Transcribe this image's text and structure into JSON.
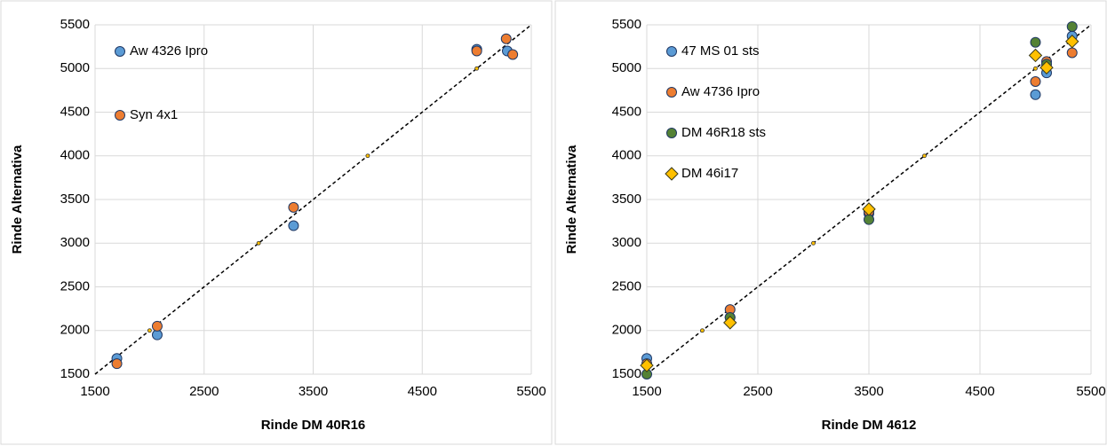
{
  "chart_data": [
    {
      "type": "scatter",
      "x_label": "Rinde DM 40R16",
      "y_label": "Rinde Alternativa",
      "xlim": [
        1500,
        5500
      ],
      "ylim": [
        1500,
        5500
      ],
      "xticks": [
        1500,
        2500,
        3500,
        4500,
        5500
      ],
      "yticks": [
        1500,
        2000,
        2500,
        3000,
        3500,
        4000,
        4500,
        5000,
        5500
      ],
      "grid": true,
      "legend": "top-left",
      "identity_line": true,
      "series": [
        {
          "name": "Aw 4326 Ipro",
          "color": "#5b9bd5",
          "marker": "circle",
          "x": [
            1700,
            2070,
            3320,
            5000,
            5280
          ],
          "values": [
            1680,
            1950,
            3200,
            5220,
            5200
          ]
        },
        {
          "name": "Syn 4x1",
          "color": "#ed7d31",
          "marker": "circle",
          "x": [
            1700,
            2070,
            3320,
            5000,
            5270,
            5330
          ],
          "values": [
            1620,
            2050,
            3410,
            5200,
            5340,
            5160
          ]
        },
        {
          "color": "#ffc000",
          "marker": "dot",
          "x": [
            2000,
            3000,
            4000,
            5000
          ],
          "values": [
            2000,
            3000,
            4000,
            5000
          ]
        }
      ]
    },
    {
      "type": "scatter",
      "x_label": "Rinde DM 4612",
      "y_label": "Rinde Alternativa",
      "xlim": [
        1500,
        5500
      ],
      "ylim": [
        1500,
        5500
      ],
      "xticks": [
        1500,
        2500,
        3500,
        4500,
        5500
      ],
      "yticks": [
        1500,
        2000,
        2500,
        3000,
        3500,
        4000,
        4500,
        5000,
        5500
      ],
      "grid": true,
      "legend": "top-left",
      "identity_line": true,
      "series": [
        {
          "name": "47 MS 01 sts",
          "color": "#5b9bd5",
          "marker": "circle",
          "x": [
            1500,
            2250,
            3500,
            5000,
            5100,
            5330
          ],
          "values": [
            1680,
            2150,
            3340,
            4700,
            4950,
            5370
          ]
        },
        {
          "name": "Aw 4736 Ipro",
          "color": "#ed7d31",
          "marker": "circle",
          "x": [
            1500,
            2250,
            3500,
            5000,
            5100,
            5330
          ],
          "values": [
            1620,
            2240,
            3360,
            4850,
            5080,
            5180
          ]
        },
        {
          "name": "DM 46R18 sts",
          "color": "#548235",
          "marker": "circle",
          "x": [
            1500,
            2250,
            3500,
            5000,
            5100,
            5330
          ],
          "values": [
            1500,
            2150,
            3270,
            5300,
            5050,
            5480
          ]
        },
        {
          "name": "DM 46i17",
          "color": "#ffc000",
          "marker": "diamond",
          "x": [
            1500,
            2250,
            3500,
            5000,
            5100,
            5330
          ],
          "values": [
            1600,
            2090,
            3390,
            5150,
            5010,
            5310
          ]
        },
        {
          "color": "#ffc000",
          "marker": "dot",
          "x": [
            2000,
            3000,
            4000,
            5000
          ],
          "values": [
            2000,
            3000,
            4000,
            5000
          ]
        }
      ]
    }
  ]
}
